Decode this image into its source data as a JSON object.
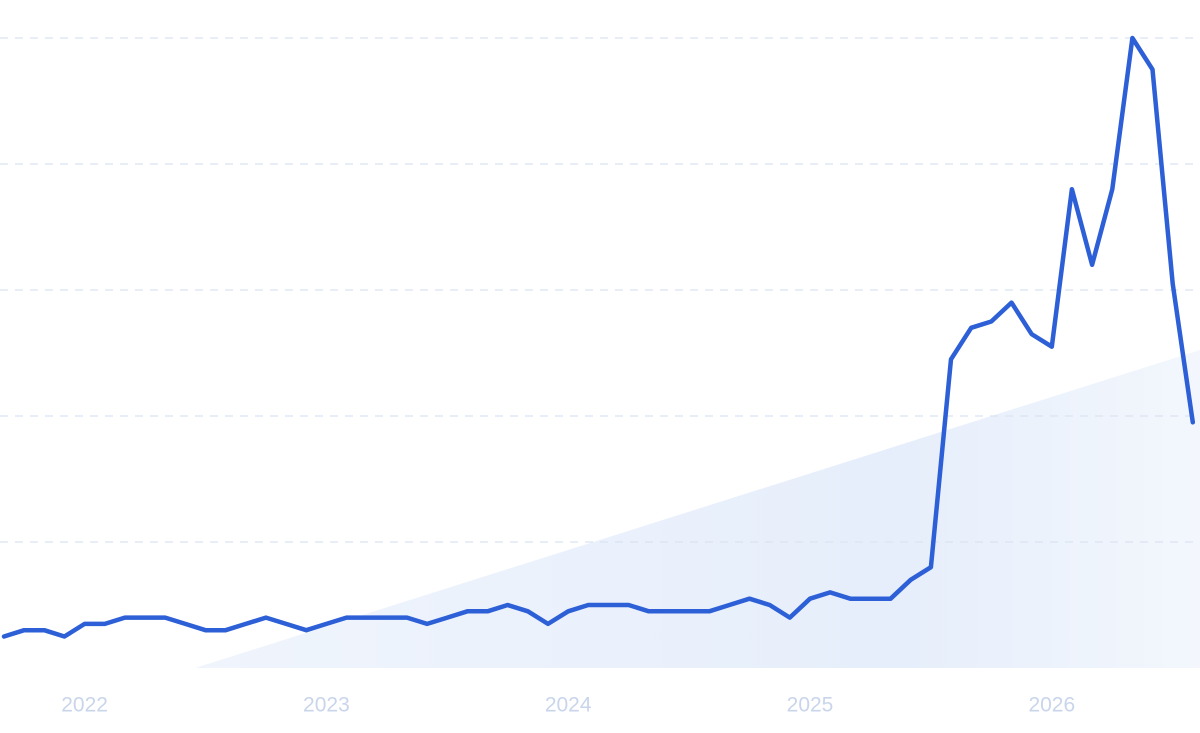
{
  "chart_data": {
    "type": "line",
    "categories": [
      null,
      null,
      null,
      null,
      "2022",
      null,
      null,
      null,
      null,
      null,
      null,
      null,
      null,
      null,
      null,
      null,
      "2023",
      null,
      null,
      null,
      null,
      null,
      null,
      null,
      null,
      null,
      null,
      null,
      "2024",
      null,
      null,
      null,
      null,
      null,
      null,
      null,
      null,
      null,
      null,
      null,
      "2025",
      null,
      null,
      null,
      null,
      null,
      null,
      null,
      null,
      null,
      null,
      null,
      "2026",
      null,
      null,
      null,
      null,
      null,
      null,
      null
    ],
    "series": [
      {
        "color": "#2d5fd6",
        "values": [
          5,
          6,
          6,
          5,
          7,
          7,
          8,
          8,
          8,
          7,
          6,
          6,
          7,
          8,
          7,
          6,
          7,
          8,
          8,
          8,
          8,
          7,
          8,
          9,
          9,
          10,
          9,
          7,
          9,
          10,
          10,
          10,
          9,
          9,
          9,
          9,
          10,
          11,
          10,
          8,
          11,
          12,
          11,
          11,
          11,
          14,
          16,
          49,
          54,
          55,
          58,
          53,
          51,
          76,
          64,
          76,
          100,
          95,
          61,
          39
        ]
      }
    ],
    "ylim": [
      0,
      100
    ],
    "yticks": [
      20,
      40,
      60,
      80,
      100
    ],
    "grid": true
  }
}
